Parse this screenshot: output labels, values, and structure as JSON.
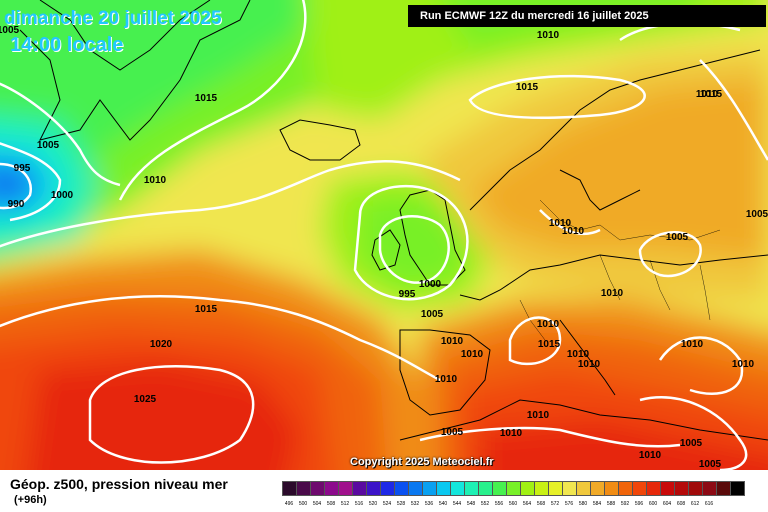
{
  "header": {
    "date": "dimanche 20 juillet 2025",
    "time": "14:00 locale",
    "run": "Run ECMWF 12Z du mercredi 16 juillet 2025"
  },
  "copyright": "Copyright 2025 Meteociel.fr",
  "footer": {
    "title": "Géop. z500, pression niveau mer",
    "subtitle": "(+96h)"
  },
  "isobar_labels": [
    "1005",
    "1010",
    "1015",
    "1005",
    "995",
    "990",
    "1000",
    "1010",
    "1010",
    "1015",
    "1015",
    "1010",
    "1010",
    "1005",
    "995",
    "1000",
    "1005",
    "1015",
    "1020",
    "1025",
    "1010",
    "1010",
    "1010",
    "1010",
    "1010",
    "1015",
    "1010",
    "1010",
    "1010",
    "1010",
    "1010",
    "1005",
    "1010",
    "1005",
    "1010",
    "1005",
    "1005",
    "1010"
  ],
  "legend": {
    "colors": [
      "#2b0a2b",
      "#4a0a4a",
      "#6e0a6e",
      "#8c0a8c",
      "#a0108c",
      "#5a0aa0",
      "#3c14c8",
      "#1e28e6",
      "#0a50f0",
      "#0a78f0",
      "#0aa0f0",
      "#0ac8f0",
      "#14e6dc",
      "#1ef0b4",
      "#28f08c",
      "#46f050",
      "#78f028",
      "#a0f014",
      "#c8f014",
      "#e6f028",
      "#f0e650",
      "#f0c83c",
      "#f0aa28",
      "#f08c14",
      "#f0640a",
      "#f0460a",
      "#e6280a",
      "#c80a0a",
      "#b40a0a",
      "#a00a0a",
      "#8c0a14",
      "#5a0a0a",
      "#000000"
    ],
    "ticks": [
      "496",
      "500",
      "504",
      "508",
      "512",
      "516",
      "520",
      "524",
      "528",
      "532",
      "536",
      "540",
      "544",
      "548",
      "552",
      "556",
      "560",
      "564",
      "568",
      "572",
      "576",
      "580",
      "584",
      "588",
      "592",
      "596",
      "600",
      "604",
      "608",
      "612",
      "616"
    ]
  }
}
